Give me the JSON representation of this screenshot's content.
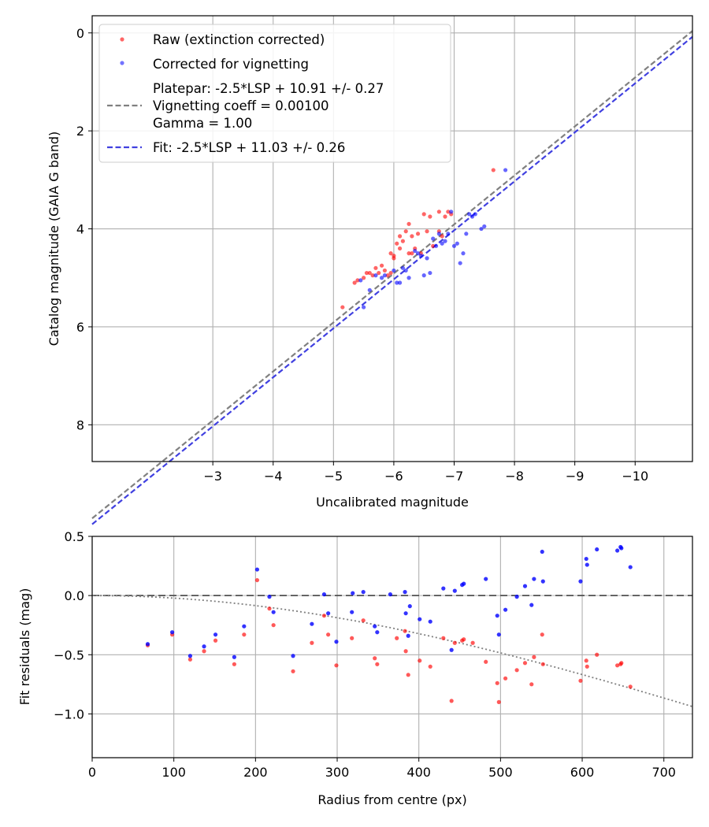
{
  "chart_data": [
    {
      "type": "scatter",
      "xlabel": "Uncalibrated magnitude",
      "ylabel": "Catalog magnitude (GAIA G band)",
      "xlim": [
        -1.0,
        -10.95
      ],
      "ylim": [
        8.75,
        -0.35
      ],
      "x_ticks": [
        -3,
        -4,
        -5,
        -6,
        -7,
        -8,
        -9,
        -10
      ],
      "x_tick_labels": [
        "−3",
        "−4",
        "−5",
        "−6",
        "−7",
        "−8",
        "−9",
        "−10"
      ],
      "y_ticks": [
        0,
        2,
        4,
        6,
        8
      ],
      "y_tick_labels": [
        "0",
        "2",
        "4",
        "6",
        "8"
      ],
      "grid": true,
      "legend": {
        "placement": "upper-left",
        "entries": [
          {
            "label": "Raw (extinction corrected)",
            "kind": "marker",
            "color": "#ff0000"
          },
          {
            "label": "Corrected for vignetting",
            "kind": "marker",
            "color": "#0000ff"
          },
          {
            "label": "Platepar: -2.5*LSP + 10.91 +/- 0.27\nVignetting coeff = 0.00100\nGamma = 1.00",
            "kind": "line",
            "color": "#808080"
          },
          {
            "label": "Fit: -2.5*LSP + 11.03 +/- 0.26",
            "kind": "line",
            "color": "#4040e0"
          }
        ]
      },
      "lines": [
        {
          "name": "Platepar",
          "color": "#808080",
          "slope": 1,
          "intercept": 10.91
        },
        {
          "name": "Fit",
          "color": "#4040e0",
          "slope": 1,
          "intercept": 11.03
        }
      ],
      "series": [
        {
          "name": "Raw (extinction corrected)",
          "color": "#ff0000",
          "points": [
            [
              -5.15,
              5.6
            ],
            [
              -5.35,
              5.1
            ],
            [
              -5.4,
              5.05
            ],
            [
              -5.5,
              5.0
            ],
            [
              -5.55,
              4.9
            ],
            [
              -5.6,
              4.9
            ],
            [
              -5.65,
              4.95
            ],
            [
              -5.7,
              4.8
            ],
            [
              -5.75,
              4.9
            ],
            [
              -5.8,
              4.75
            ],
            [
              -5.85,
              4.85
            ],
            [
              -5.9,
              4.95
            ],
            [
              -5.95,
              4.5
            ],
            [
              -5.95,
              4.9
            ],
            [
              -6.0,
              4.55
            ],
            [
              -6.0,
              4.6
            ],
            [
              -6.05,
              4.3
            ],
            [
              -6.1,
              4.15
            ],
            [
              -6.1,
              4.4
            ],
            [
              -6.15,
              4.25
            ],
            [
              -6.2,
              4.05
            ],
            [
              -6.25,
              4.5
            ],
            [
              -6.25,
              3.9
            ],
            [
              -6.3,
              4.15
            ],
            [
              -6.3,
              4.5
            ],
            [
              -6.35,
              4.4
            ],
            [
              -6.4,
              4.1
            ],
            [
              -6.45,
              4.5
            ],
            [
              -6.5,
              3.7
            ],
            [
              -6.55,
              4.05
            ],
            [
              -6.6,
              3.75
            ],
            [
              -6.65,
              4.35
            ],
            [
              -6.75,
              4.05
            ],
            [
              -6.75,
              3.65
            ],
            [
              -6.8,
              4.15
            ],
            [
              -6.85,
              3.75
            ],
            [
              -6.9,
              3.65
            ],
            [
              -6.95,
              3.7
            ],
            [
              -7.65,
              2.8
            ]
          ]
        },
        {
          "name": "Corrected for vignetting",
          "color": "#0000ff",
          "points": [
            [
              -5.45,
              5.05
            ],
            [
              -5.5,
              5.6
            ],
            [
              -5.6,
              5.25
            ],
            [
              -5.7,
              4.95
            ],
            [
              -5.8,
              5.0
            ],
            [
              -5.85,
              4.95
            ],
            [
              -6.0,
              4.85
            ],
            [
              -6.05,
              5.1
            ],
            [
              -6.1,
              5.1
            ],
            [
              -6.15,
              4.8
            ],
            [
              -6.2,
              4.85
            ],
            [
              -6.25,
              5.0
            ],
            [
              -6.35,
              4.45
            ],
            [
              -6.4,
              4.5
            ],
            [
              -6.45,
              4.55
            ],
            [
              -6.5,
              4.95
            ],
            [
              -6.55,
              4.6
            ],
            [
              -6.6,
              4.9
            ],
            [
              -6.65,
              4.2
            ],
            [
              -6.7,
              4.35
            ],
            [
              -6.75,
              4.1
            ],
            [
              -6.8,
              4.3
            ],
            [
              -6.85,
              4.25
            ],
            [
              -6.9,
              4.1
            ],
            [
              -6.95,
              3.65
            ],
            [
              -7.0,
              4.35
            ],
            [
              -7.05,
              4.3
            ],
            [
              -7.1,
              4.7
            ],
            [
              -7.15,
              4.5
            ],
            [
              -7.2,
              4.1
            ],
            [
              -7.25,
              3.7
            ],
            [
              -7.3,
              3.75
            ],
            [
              -7.35,
              3.7
            ],
            [
              -7.45,
              4.0
            ],
            [
              -7.5,
              3.95
            ],
            [
              -7.85,
              2.8
            ]
          ]
        }
      ]
    },
    {
      "type": "scatter",
      "xlabel": "Radius from centre (px)",
      "ylabel": "Fit residuals (mag)",
      "xlim": [
        0,
        735
      ],
      "ylim": [
        -1.37,
        0.5
      ],
      "x_ticks": [
        0,
        100,
        200,
        300,
        400,
        500,
        600,
        700
      ],
      "x_tick_labels": [
        "0",
        "100",
        "200",
        "300",
        "400",
        "500",
        "600",
        "700"
      ],
      "y_ticks": [
        0.5,
        0.0,
        -0.5,
        -1.0
      ],
      "y_tick_labels": [
        "0.5",
        "0.0",
        "−0.5",
        "−1.0"
      ],
      "grid": true,
      "lines": [
        {
          "name": "zero",
          "color": "#505050",
          "dash": "long",
          "y": 0.0
        },
        {
          "name": "vignetting model",
          "color": "#808080",
          "dash": "dot",
          "curve": "-2.5*log10(cos(atan(x*0.001))^4)*-1"
        }
      ],
      "series": [
        {
          "name": "Raw (extinction corrected)",
          "color": "#ff0000",
          "points": [
            [
              68,
              -0.42
            ],
            [
              98,
              -0.33
            ],
            [
              120,
              -0.54
            ],
            [
              137,
              -0.47
            ],
            [
              151,
              -0.38
            ],
            [
              174,
              -0.58
            ],
            [
              186,
              -0.33
            ],
            [
              202,
              0.13
            ],
            [
              217,
              -0.11
            ],
            [
              222,
              -0.25
            ],
            [
              246,
              -0.64
            ],
            [
              269,
              -0.4
            ],
            [
              284,
              -0.17
            ],
            [
              289,
              -0.33
            ],
            [
              299,
              -0.59
            ],
            [
              318,
              -0.36
            ],
            [
              332,
              -0.21
            ],
            [
              346,
              -0.53
            ],
            [
              349,
              -0.58
            ],
            [
              373,
              -0.36
            ],
            [
              383,
              -0.3
            ],
            [
              384,
              -0.47
            ],
            [
              387,
              -0.67
            ],
            [
              401,
              -0.55
            ],
            [
              414,
              -0.6
            ],
            [
              430,
              -0.36
            ],
            [
              440,
              -0.89
            ],
            [
              444,
              -0.4
            ],
            [
              453,
              -0.38
            ],
            [
              455,
              -0.37
            ],
            [
              466,
              -0.4
            ],
            [
              482,
              -0.56
            ],
            [
              496,
              -0.74
            ],
            [
              498,
              -0.9
            ],
            [
              506,
              -0.7
            ],
            [
              520,
              -0.63
            ],
            [
              530,
              -0.57
            ],
            [
              538,
              -0.75
            ],
            [
              541,
              -0.52
            ],
            [
              551,
              -0.33
            ],
            [
              552,
              -0.58
            ],
            [
              598,
              -0.72
            ],
            [
              605,
              -0.55
            ],
            [
              606,
              -0.6
            ],
            [
              618,
              -0.5
            ],
            [
              643,
              -0.59
            ],
            [
              647,
              -0.58
            ],
            [
              648,
              -0.57
            ],
            [
              659,
              -0.77
            ]
          ]
        },
        {
          "name": "Corrected for vignetting",
          "color": "#0000ff",
          "points": [
            [
              68,
              -0.41
            ],
            [
              98,
              -0.31
            ],
            [
              120,
              -0.51
            ],
            [
              137,
              -0.43
            ],
            [
              151,
              -0.33
            ],
            [
              174,
              -0.52
            ],
            [
              186,
              -0.26
            ],
            [
              202,
              0.22
            ],
            [
              217,
              -0.01
            ],
            [
              222,
              -0.14
            ],
            [
              246,
              -0.51
            ],
            [
              269,
              -0.24
            ],
            [
              284,
              0.01
            ],
            [
              289,
              -0.15
            ],
            [
              299,
              -0.39
            ],
            [
              318,
              -0.14
            ],
            [
              319,
              0.02
            ],
            [
              332,
              0.03
            ],
            [
              346,
              -0.26
            ],
            [
              349,
              -0.31
            ],
            [
              365,
              0.01
            ],
            [
              383,
              0.03
            ],
            [
              384,
              -0.15
            ],
            [
              387,
              -0.34
            ],
            [
              389,
              -0.09
            ],
            [
              401,
              -0.2
            ],
            [
              414,
              -0.22
            ],
            [
              430,
              0.06
            ],
            [
              440,
              -0.46
            ],
            [
              444,
              0.04
            ],
            [
              453,
              0.09
            ],
            [
              455,
              0.1
            ],
            [
              482,
              0.14
            ],
            [
              496,
              -0.17
            ],
            [
              498,
              -0.33
            ],
            [
              506,
              -0.12
            ],
            [
              520,
              -0.01
            ],
            [
              530,
              0.08
            ],
            [
              538,
              -0.08
            ],
            [
              541,
              0.14
            ],
            [
              551,
              0.37
            ],
            [
              552,
              0.12
            ],
            [
              598,
              0.12
            ],
            [
              605,
              0.31
            ],
            [
              606,
              0.26
            ],
            [
              618,
              0.39
            ],
            [
              643,
              0.38
            ],
            [
              647,
              0.41
            ],
            [
              648,
              0.4
            ],
            [
              659,
              0.24
            ]
          ]
        }
      ]
    }
  ]
}
